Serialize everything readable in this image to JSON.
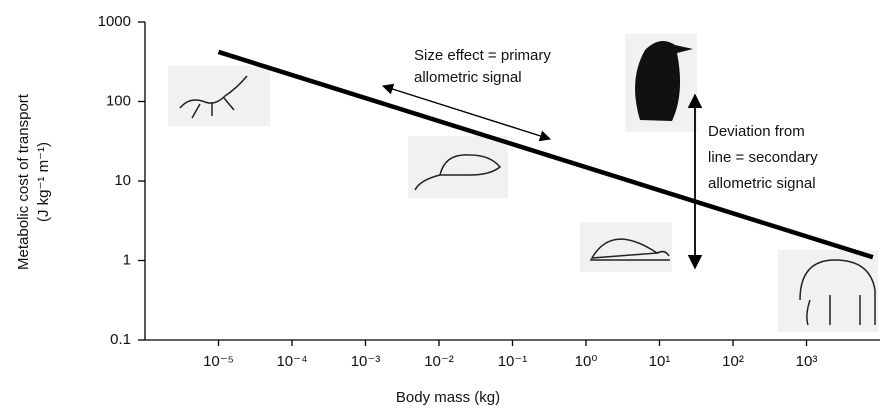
{
  "chart_data": {
    "type": "line",
    "x_label": "Body mass (kg)",
    "y_label": [
      "Metabolic cost of transport",
      "(J kg⁻¹ m⁻¹)"
    ],
    "log_x": true,
    "log_y": true,
    "xlim": [
      1e-06,
      10000
    ],
    "ylim": [
      0.1,
      1000
    ],
    "xticks": [
      {
        "value": 1e-05,
        "label": "10⁻⁵"
      },
      {
        "value": 0.0001,
        "label": "10⁻⁴"
      },
      {
        "value": 0.001,
        "label": "10⁻³"
      },
      {
        "value": 0.01,
        "label": "10⁻²"
      },
      {
        "value": 0.1,
        "label": "10⁻¹"
      },
      {
        "value": 1,
        "label": "10⁰"
      },
      {
        "value": 10,
        "label": "10¹"
      },
      {
        "value": 100,
        "label": "10²"
      },
      {
        "value": 1000,
        "label": "10³"
      }
    ],
    "yticks": [
      0.1,
      1,
      10,
      100,
      1000
    ],
    "series": [
      {
        "color": "#000000",
        "x": [
          1e-05,
          8000
        ],
        "values": [
          420,
          1.1
        ]
      }
    ],
    "annotations": {
      "size_effect": [
        "Size effect = primary",
        "allometric signal"
      ],
      "deviation": [
        "Deviation from",
        "line = secondary",
        "allometric signal"
      ]
    }
  }
}
